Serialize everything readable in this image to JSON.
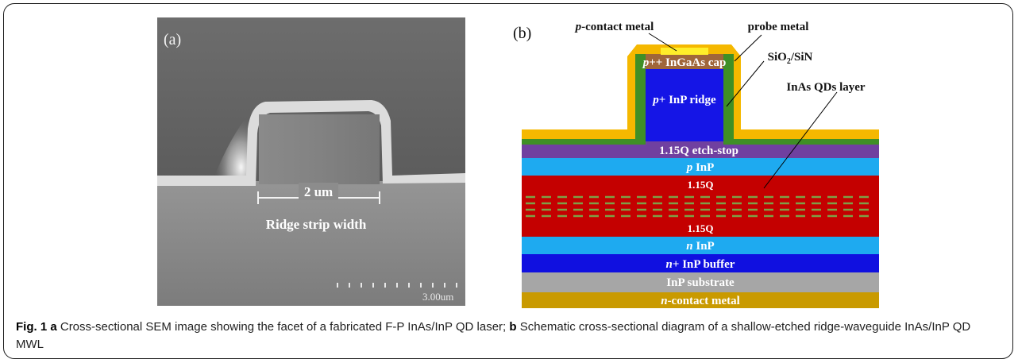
{
  "figure": {
    "panel_a": {
      "letter": "(a)",
      "measure_label": "2 um",
      "ridge_label": "Ridge strip width",
      "scale_label": "3.00um"
    },
    "panel_b": {
      "letter": "(b)",
      "p_contact_metal": {
        "italic": "p",
        "rest": "-contact metal"
      },
      "probe_metal": "probe metal",
      "cap": {
        "italic": "p",
        "rest": "++ InGaAs cap"
      },
      "sio2": {
        "a": "SiO",
        "sub": "2",
        "b": "/SiN"
      },
      "ridge": {
        "italic": "p",
        "rest": "+ InP ridge"
      },
      "qd_layer": "InAs QDs layer",
      "etch_stop": "1.15Q etch-stop",
      "p_inp": {
        "italic": "p",
        "rest": " InP"
      },
      "q_top": "1.15Q",
      "q_bottom": "1.15Q",
      "n_inp": {
        "italic": "n",
        "rest": " InP"
      },
      "buffer": {
        "italic": "n",
        "rest": "+ InP buffer"
      },
      "substrate": "InP substrate",
      "n_contact": {
        "italic": "n",
        "rest": "-contact metal"
      }
    },
    "colors": {
      "gold": "#f5b800",
      "green": "#3f8f26",
      "cap_brown": "#a0663a",
      "ridge_blue": "#1515e6",
      "etch_purple": "#7040a0",
      "p_inp_cyan": "#1eaaf0",
      "q_red": "#c40000",
      "qd_dash": "#7ea046",
      "n_inp_cyan": "#1eaaf0",
      "buffer_blue": "#1010e0",
      "substrate_gray": "#a6a6a6",
      "n_contact_gold": "#c99a00"
    },
    "caption": {
      "fig": "Fig. 1",
      "a_letter": "a",
      "a_text": " Cross-sectional SEM image showing the facet of a fabricated F-P InAs/InP QD laser; ",
      "b_letter": "b",
      "b_text": " Schematic cross-sectional diagram of a shallow-etched ridge-waveguide InAs/InP QD MWL"
    }
  }
}
